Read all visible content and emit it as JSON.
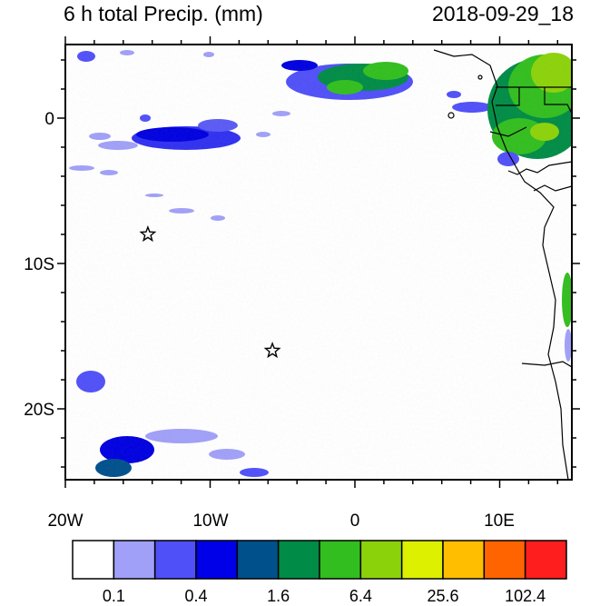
{
  "header": {
    "title_left": "6 h total Precip. (mm)",
    "title_right": "2018-09-29_18"
  },
  "map": {
    "lon_labels": [
      "20W",
      "10W",
      "0",
      "10E"
    ],
    "lat_labels": [
      "0",
      "10S",
      "20S"
    ],
    "markers": [
      {
        "type": "star",
        "lon": -14.3,
        "lat": -8.0
      },
      {
        "type": "star",
        "lon": -5.7,
        "lat": -16.0
      }
    ]
  },
  "colorbar": {
    "colors": [
      "#ffffff",
      "#a0a0f8",
      "#5050f8",
      "#0000e8",
      "#00508c",
      "#008c46",
      "#32be1e",
      "#8cd20a",
      "#dcf000",
      "#ffbe00",
      "#ff6400",
      "#ff1e1e"
    ],
    "labels": [
      "0.1",
      "0.4",
      "1.6",
      "6.4",
      "25.6",
      "102.4"
    ]
  }
}
